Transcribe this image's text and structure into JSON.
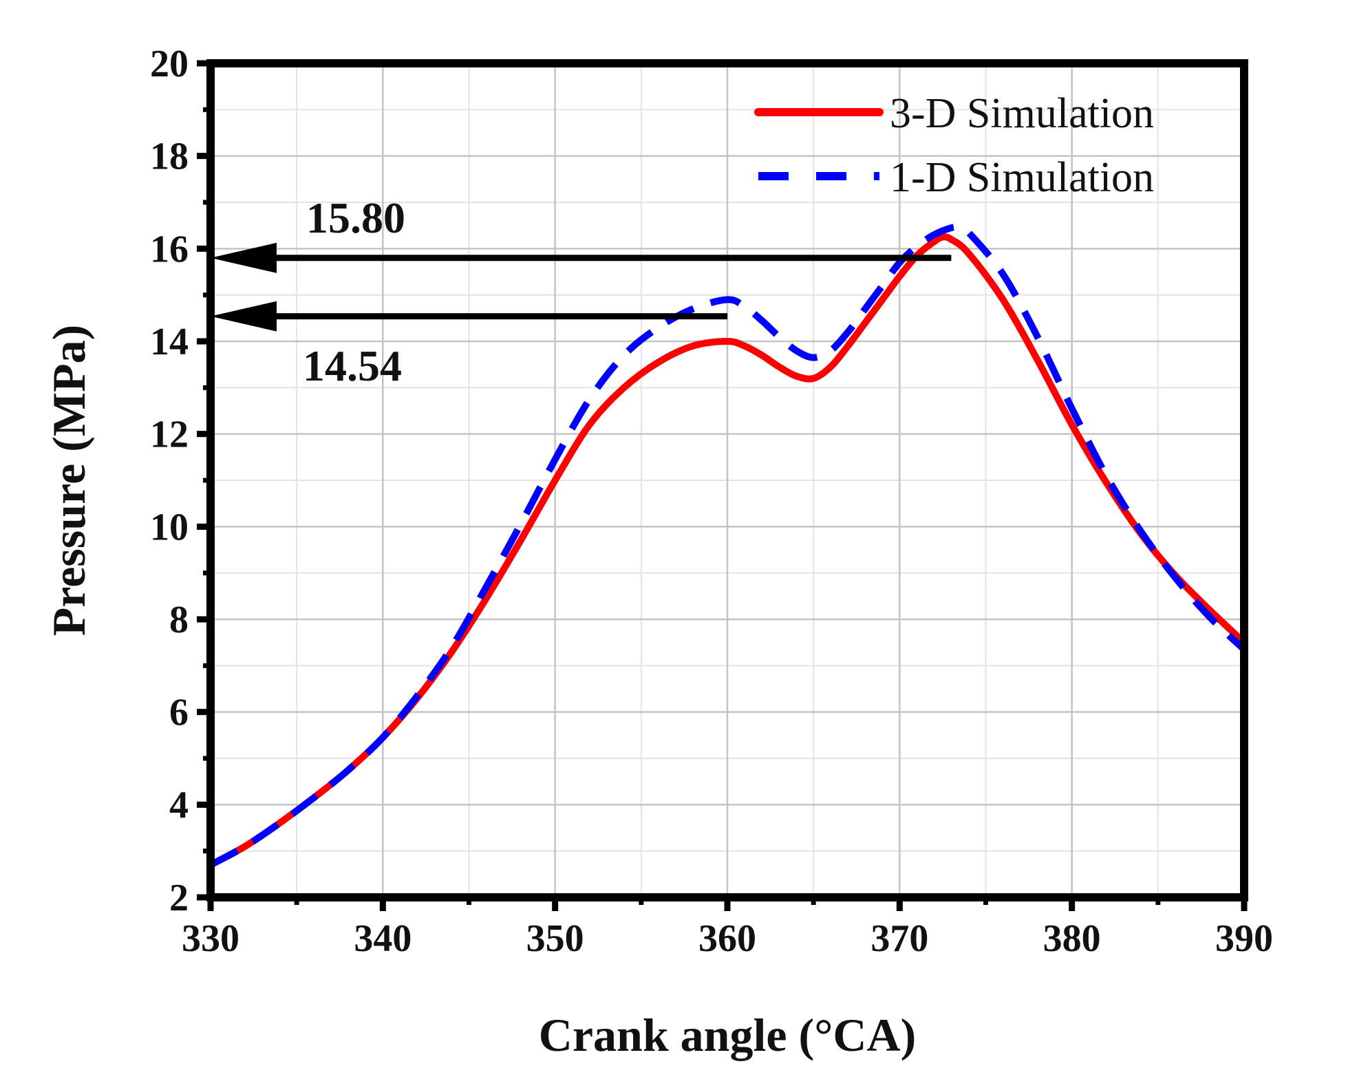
{
  "chart_data": {
    "type": "line",
    "title": "",
    "xlabel": "Crank angle (°CA)",
    "ylabel": "Pressure (MPa)",
    "xlim": [
      330,
      390
    ],
    "ylim": [
      2,
      20
    ],
    "xticks": [
      330,
      340,
      350,
      360,
      370,
      380,
      390
    ],
    "yticks": [
      2,
      4,
      6,
      8,
      10,
      12,
      14,
      16,
      18,
      20
    ],
    "grid": true,
    "legend_position": "top-right",
    "series": [
      {
        "name": "3-D Simulation",
        "color": "#ff0000",
        "style": "solid",
        "x": [
          330,
          332,
          334,
          336,
          338,
          340,
          342,
          344,
          346,
          348,
          350,
          352,
          354,
          356,
          358,
          360,
          361,
          362,
          363,
          364,
          365,
          366,
          367,
          368,
          369,
          370,
          371,
          372,
          372.5,
          373,
          374,
          376,
          378,
          380,
          382,
          384,
          386,
          388,
          390
        ],
        "y": [
          2.7,
          3.1,
          3.6,
          4.15,
          4.75,
          5.45,
          6.3,
          7.3,
          8.45,
          9.7,
          11.0,
          12.2,
          13.0,
          13.55,
          13.9,
          14.0,
          13.9,
          13.7,
          13.45,
          13.25,
          13.2,
          13.45,
          13.9,
          14.4,
          14.9,
          15.4,
          15.85,
          16.15,
          16.25,
          16.2,
          15.9,
          14.9,
          13.6,
          12.2,
          10.95,
          9.85,
          8.95,
          8.2,
          7.5
        ]
      },
      {
        "name": "1-D Simulation",
        "color": "#0000ff",
        "style": "dashed",
        "x": [
          330,
          332,
          334,
          336,
          338,
          340,
          342,
          344,
          346,
          348,
          350,
          352,
          354,
          356,
          358,
          360,
          361,
          362,
          363,
          364,
          365,
          366,
          367,
          368,
          369,
          370,
          371,
          372,
          373,
          373.5,
          374,
          376,
          378,
          380,
          382,
          384,
          386,
          388,
          390
        ],
        "y": [
          2.7,
          3.1,
          3.6,
          4.15,
          4.75,
          5.45,
          6.35,
          7.4,
          8.7,
          10.05,
          11.45,
          12.75,
          13.7,
          14.3,
          14.7,
          14.9,
          14.75,
          14.45,
          14.1,
          13.8,
          13.65,
          13.8,
          14.2,
          14.7,
          15.2,
          15.7,
          16.05,
          16.3,
          16.45,
          16.45,
          16.35,
          15.45,
          14.1,
          12.55,
          11.1,
          9.9,
          8.9,
          8.05,
          7.35
        ]
      }
    ],
    "annotations": [
      {
        "label": "15.80",
        "value": 15.8,
        "arrow_from_x": 373,
        "arrow_to_x": 330,
        "label_side": "above"
      },
      {
        "label": "14.54",
        "value": 14.54,
        "arrow_from_x": 360,
        "arrow_to_x": 330,
        "label_side": "below"
      }
    ]
  }
}
